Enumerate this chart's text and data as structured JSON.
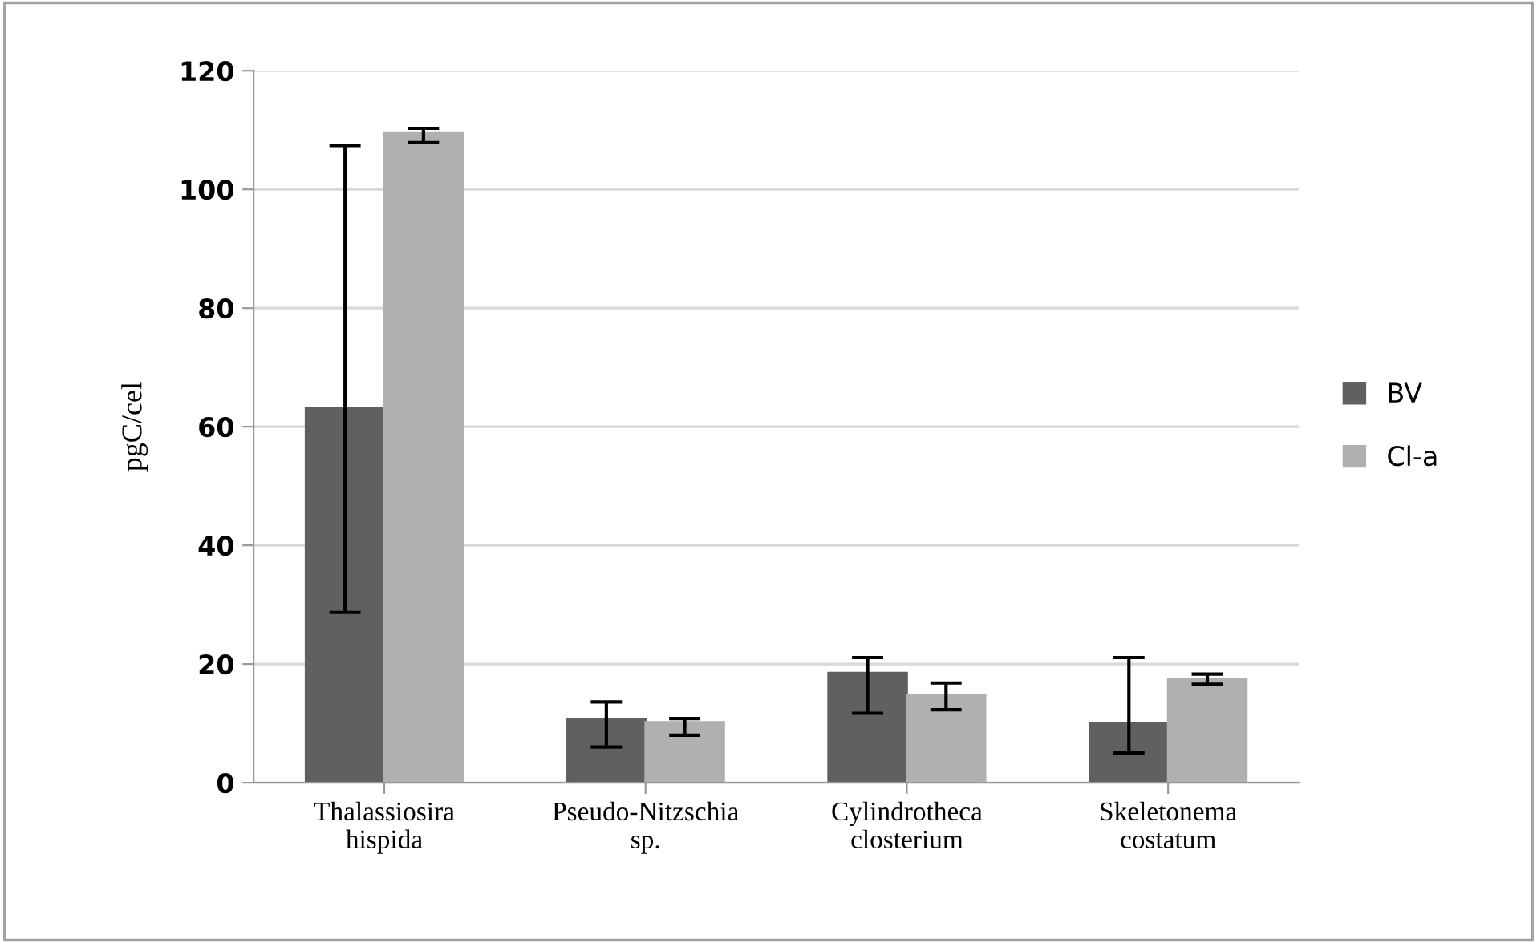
{
  "chart_data": {
    "type": "bar",
    "ylabel": "pgC/cel",
    "categories": [
      "Thalassiosira\nhispida",
      "Pseudo-Nitzschia\nsp.",
      "Cylindrotheca\nclosterium",
      "Skeletonema\ncostatum"
    ],
    "series": [
      {
        "name": "BV",
        "color": "#606060",
        "values": [
          63.1,
          10.7,
          18.5,
          10.1
        ],
        "errors": [
          [
            28.7,
            107.4
          ],
          [
            6.0,
            13.6
          ],
          [
            11.7,
            21.1
          ],
          [
            5.0,
            21.1
          ]
        ]
      },
      {
        "name": "Cl-a",
        "color": "#b0b0b0",
        "values": [
          109.6,
          10.2,
          14.7,
          17.5
        ],
        "errors": [
          [
            107.9,
            110.3
          ],
          [
            8.0,
            10.8
          ],
          [
            12.3,
            16.8
          ],
          [
            16.6,
            18.3
          ]
        ]
      }
    ],
    "ylim": [
      0,
      120
    ],
    "yticks": [
      0,
      20,
      40,
      60,
      80,
      100,
      120
    ],
    "grid": "y",
    "legend": "right"
  }
}
